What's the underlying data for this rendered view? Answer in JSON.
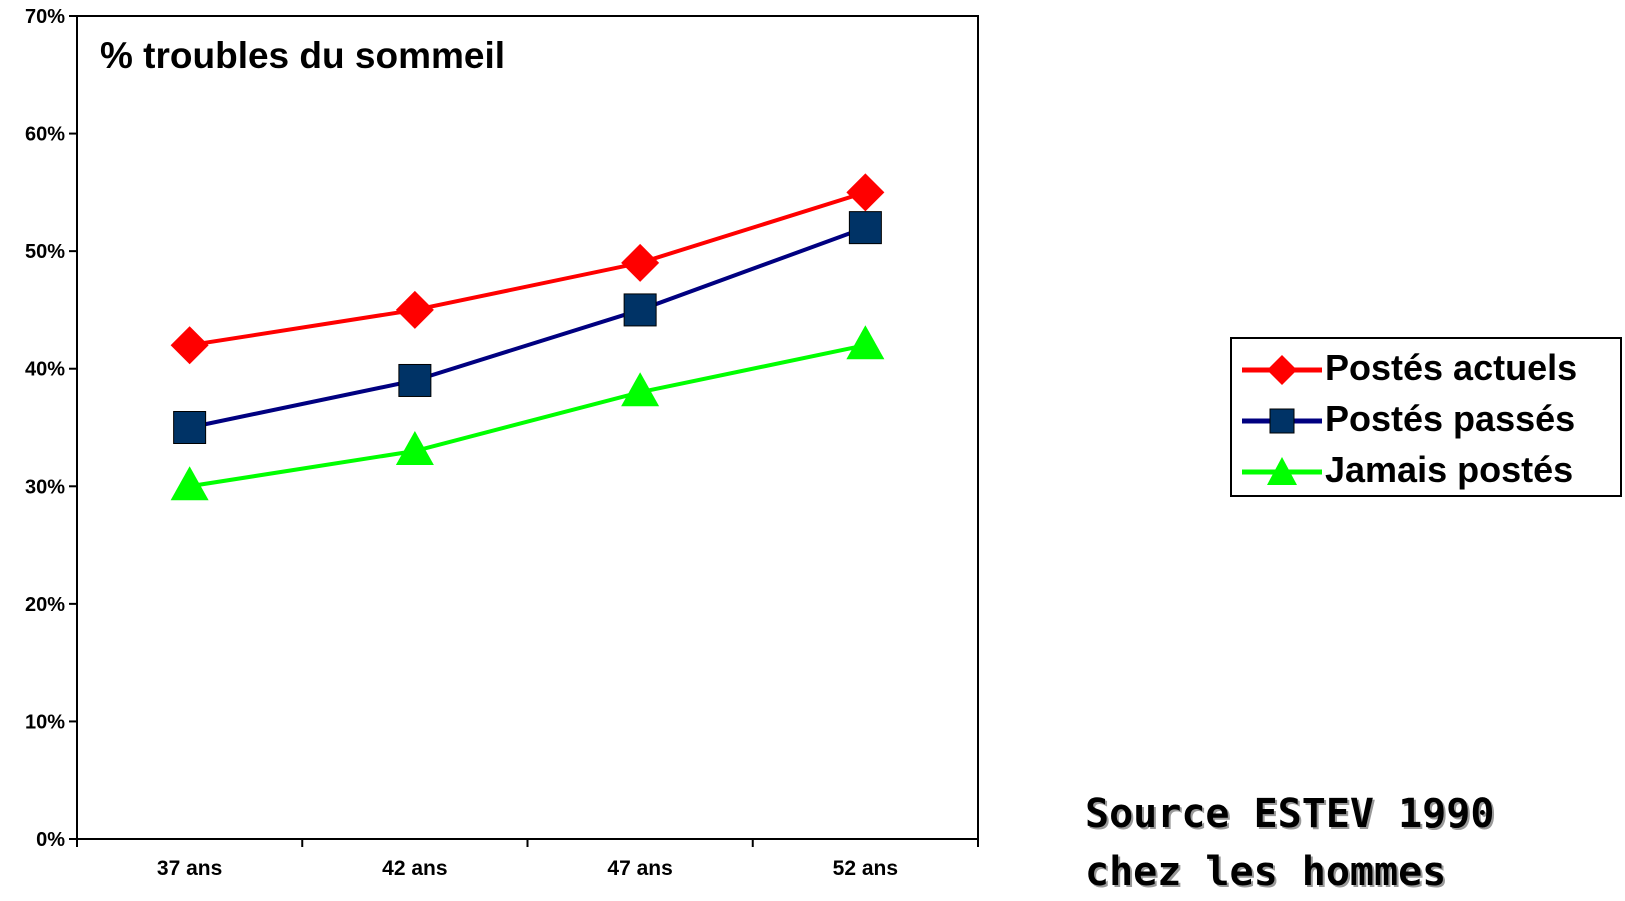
{
  "chart_data": {
    "type": "line",
    "title": "% troubles du sommeil",
    "categories": [
      "37 ans",
      "42 ans",
      "47 ans",
      "52 ans"
    ],
    "y_ticks": [
      "0%",
      "10%",
      "20%",
      "30%",
      "40%",
      "50%",
      "60%",
      "70%"
    ],
    "ylim": [
      0,
      70
    ],
    "grid": false,
    "legend_position": "right",
    "series": [
      {
        "name": "Postés actuels",
        "values": [
          42,
          45,
          49,
          55
        ],
        "color": "#ff0000",
        "marker": "diamond",
        "marker_color": "#ff0000"
      },
      {
        "name": "Postés passés",
        "values": [
          35,
          39,
          45,
          52
        ],
        "color": "#000080",
        "marker": "square",
        "marker_color": "#003366"
      },
      {
        "name": "Jamais postés",
        "values": [
          30,
          33,
          38,
          42
        ],
        "color": "#00ff00",
        "marker": "triangle",
        "marker_color": "#00ff00"
      }
    ]
  },
  "source": {
    "line1": "Source ESTEV 1990",
    "line2": "chez les hommes"
  }
}
